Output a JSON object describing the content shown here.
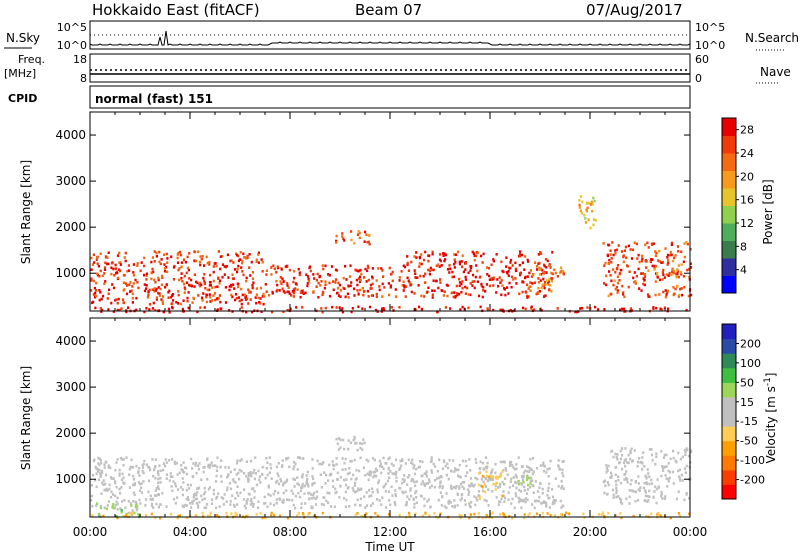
{
  "header": {
    "station": "Hokkaido East (fitACF)",
    "beam": "Beam 07",
    "date": "07/Aug/2017"
  },
  "noise_panel": {
    "left_label": "N.Sky",
    "right_label": "N.Search",
    "left_ticks": [
      "10^5",
      "10^0"
    ],
    "right_ticks": [
      "10^5",
      "10^0"
    ]
  },
  "freq_panel": {
    "left_label_line1": "Freq.",
    "left_label_line2": "[MHz]",
    "left_ticks": [
      "18",
      "8"
    ],
    "right_label": "Nave",
    "right_ticks": [
      "60",
      "0"
    ]
  },
  "cpid_panel": {
    "label": "CPID",
    "value": "normal (fast) 151"
  },
  "colors": {
    "power_scale": [
      "#0000ff",
      "#2f2fa0",
      "#3a7d4a",
      "#4fae5a",
      "#8fd14f",
      "#e7c52a",
      "#f59a1a",
      "#f56a10",
      "#f03a0a",
      "#e80000"
    ],
    "velocity_scale": [
      "#ff0000",
      "#ff3c00",
      "#ff7800",
      "#ffa000",
      "#ffcc55",
      "#c0c0c0",
      "#c0c0c0",
      "#9bd65a",
      "#3fbf3f",
      "#2e8b57",
      "#2a4aa8",
      "#2020c0"
    ]
  },
  "chart_data": [
    {
      "type": "heatmap",
      "title": "",
      "xlabel": "",
      "ylabel": "Slant Range [km]",
      "x_ticks": [
        "00:00",
        "04:00",
        "08:00",
        "12:00",
        "16:00",
        "20:00",
        "00:00"
      ],
      "y_ticks": [
        "1000",
        "2000",
        "3000",
        "4000"
      ],
      "ylim": [
        180,
        4500
      ],
      "xlim_hours": [
        0,
        24
      ],
      "colorbar": {
        "label": "Power [dB]",
        "ticks": [
          "4",
          "8",
          "12",
          "16",
          "20",
          "24",
          "28"
        ],
        "range": [
          0,
          30
        ]
      },
      "regions": [
        {
          "t0": 0.0,
          "t1": 7.0,
          "r0": 350,
          "r1": 1500,
          "value": 26
        },
        {
          "t0": 7.0,
          "t1": 12.5,
          "r0": 500,
          "r1": 1200,
          "value": 27
        },
        {
          "t0": 9.8,
          "t1": 11.2,
          "r0": 1650,
          "r1": 1950,
          "value": 24
        },
        {
          "t0": 12.5,
          "t1": 18.5,
          "r0": 500,
          "r1": 1500,
          "value": 28
        },
        {
          "t0": 17.5,
          "t1": 19.0,
          "r0": 600,
          "r1": 1200,
          "value": 22
        },
        {
          "t0": 20.5,
          "t1": 24.0,
          "r0": 500,
          "r1": 1700,
          "value": 25
        },
        {
          "t0": 19.5,
          "t1": 20.2,
          "r0": 2000,
          "r1": 2800,
          "value": 18
        },
        {
          "t0": 0.0,
          "t1": 24.0,
          "r0": 180,
          "r1": 300,
          "value": 29
        }
      ]
    },
    {
      "type": "heatmap",
      "title": "",
      "xlabel": "Time UT",
      "ylabel": "Slant Range [km]",
      "x_ticks": [
        "00:00",
        "04:00",
        "08:00",
        "12:00",
        "16:00",
        "20:00",
        "00:00"
      ],
      "y_ticks": [
        "1000",
        "2000",
        "3000",
        "4000"
      ],
      "ylim": [
        180,
        4500
      ],
      "xlim_hours": [
        0,
        24
      ],
      "colorbar": {
        "label": "Velocity [m s^-1]",
        "ticks": [
          "200",
          "100",
          "50",
          "15",
          "-15",
          "-50",
          "-100",
          "-200"
        ],
        "range": [
          -250,
          250
        ]
      },
      "regions": [
        {
          "t0": 0.0,
          "t1": 19.0,
          "r0": 400,
          "r1": 1500,
          "value": 0
        },
        {
          "t0": 20.5,
          "t1": 24.0,
          "r0": 500,
          "r1": 1700,
          "value": 0
        },
        {
          "t0": 9.8,
          "t1": 11.2,
          "r0": 1650,
          "r1": 1950,
          "value": 0
        },
        {
          "t0": 15.5,
          "t1": 16.5,
          "r0": 600,
          "r1": 1200,
          "value": -60
        },
        {
          "t0": 17.0,
          "t1": 17.6,
          "r0": 900,
          "r1": 1100,
          "value": 40
        },
        {
          "t0": 0.0,
          "t1": 2.0,
          "r0": 200,
          "r1": 500,
          "value": 60
        },
        {
          "t0": 0.0,
          "t1": 24.0,
          "r0": 180,
          "r1": 300,
          "value": -80
        }
      ]
    }
  ]
}
